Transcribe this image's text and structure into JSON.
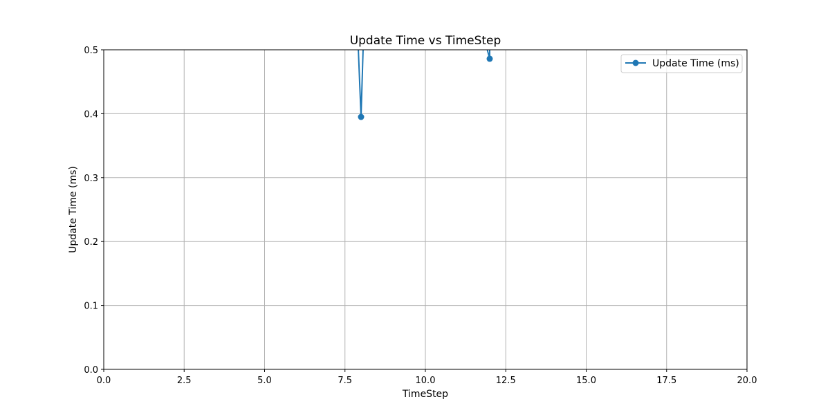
{
  "chart_data": {
    "type": "line",
    "title": "Update Time vs TimeStep",
    "xlabel": "TimeStep",
    "ylabel": "Update Time (ms)",
    "xlim": [
      0,
      20
    ],
    "ylim": [
      0,
      0.5
    ],
    "xticks": [
      "0.0",
      "2.5",
      "5.0",
      "7.5",
      "10.0",
      "12.5",
      "15.0",
      "17.5",
      "20.0"
    ],
    "yticks": [
      "0.0",
      "0.1",
      "0.2",
      "0.3",
      "0.4",
      "0.5"
    ],
    "grid": true,
    "legend_position": "top-right",
    "series": [
      {
        "name": "Update Time (ms)",
        "color": "#1f77b4",
        "marker": "circle",
        "points": [
          {
            "x": 8,
            "y": 0.395
          },
          {
            "x": 12,
            "y": 0.486
          }
        ]
      }
    ]
  }
}
